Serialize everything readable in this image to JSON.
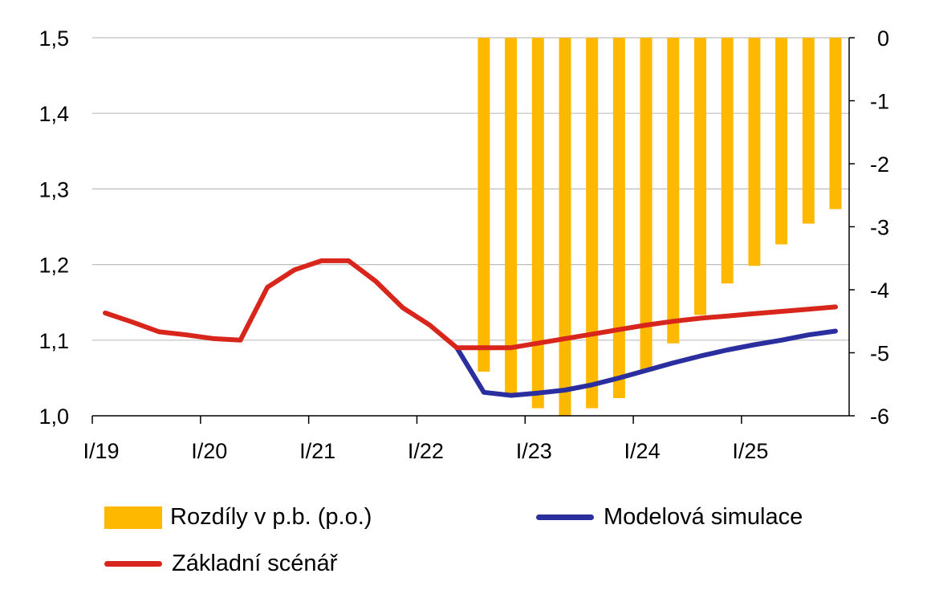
{
  "chart_data": {
    "type": "bar+line",
    "title": "",
    "categories": [
      "I/19",
      "II/19",
      "III/19",
      "IV/19",
      "I/20",
      "II/20",
      "III/20",
      "IV/20",
      "I/21",
      "II/21",
      "III/21",
      "IV/21",
      "I/22",
      "II/22",
      "III/22",
      "IV/22",
      "I/23",
      "II/23",
      "III/23",
      "IV/23",
      "I/24",
      "II/24",
      "III/24",
      "IV/24",
      "I/25",
      "II/25",
      "III/25",
      "IV/25"
    ],
    "x_tick_labels": [
      "I/19",
      "I/20",
      "I/21",
      "I/22",
      "I/23",
      "I/24",
      "I/25"
    ],
    "y_left": {
      "lim": [
        1.0,
        1.5
      ],
      "ticks": [
        "1,0",
        "1,1",
        "1,2",
        "1,3",
        "1,4",
        "1,5"
      ]
    },
    "y_right": {
      "lim": [
        -6,
        0
      ],
      "ticks": [
        "0",
        "-1",
        "-2",
        "-3",
        "-4",
        "-5",
        "-6"
      ]
    },
    "grid": "horizontal",
    "legend_position": "bottom",
    "series": [
      {
        "name": "Rozdíly v p.b. (p.o.)",
        "type": "bar",
        "axis": "right",
        "color": "#FFB800",
        "values": [
          null,
          null,
          null,
          null,
          null,
          null,
          null,
          null,
          null,
          null,
          null,
          null,
          null,
          null,
          -5.3,
          -5.68,
          -5.88,
          -6.0,
          -5.88,
          -5.72,
          -5.3,
          -4.85,
          -4.4,
          -3.9,
          -3.62,
          -3.28,
          -2.95,
          -2.72
        ]
      },
      {
        "name": "Modelová simulace",
        "type": "line",
        "axis": "left",
        "color": "#2A2E9E",
        "values": [
          null,
          null,
          null,
          null,
          null,
          null,
          null,
          null,
          null,
          null,
          null,
          null,
          null,
          1.09,
          1.031,
          1.027,
          1.03,
          1.034,
          1.041,
          1.05,
          1.06,
          1.07,
          1.079,
          1.087,
          1.094,
          1.1,
          1.107,
          1.112
        ]
      },
      {
        "name": "Základní scénář",
        "type": "line",
        "axis": "left",
        "color": "#D9261C",
        "values": [
          1.136,
          1.124,
          1.111,
          1.107,
          1.102,
          1.1,
          1.17,
          1.193,
          1.205,
          1.205,
          1.178,
          1.143,
          1.12,
          1.09,
          1.09,
          1.09,
          1.096,
          1.102,
          1.108,
          1.114,
          1.12,
          1.125,
          1.129,
          1.132,
          1.135,
          1.138,
          1.141,
          1.144
        ]
      }
    ]
  }
}
